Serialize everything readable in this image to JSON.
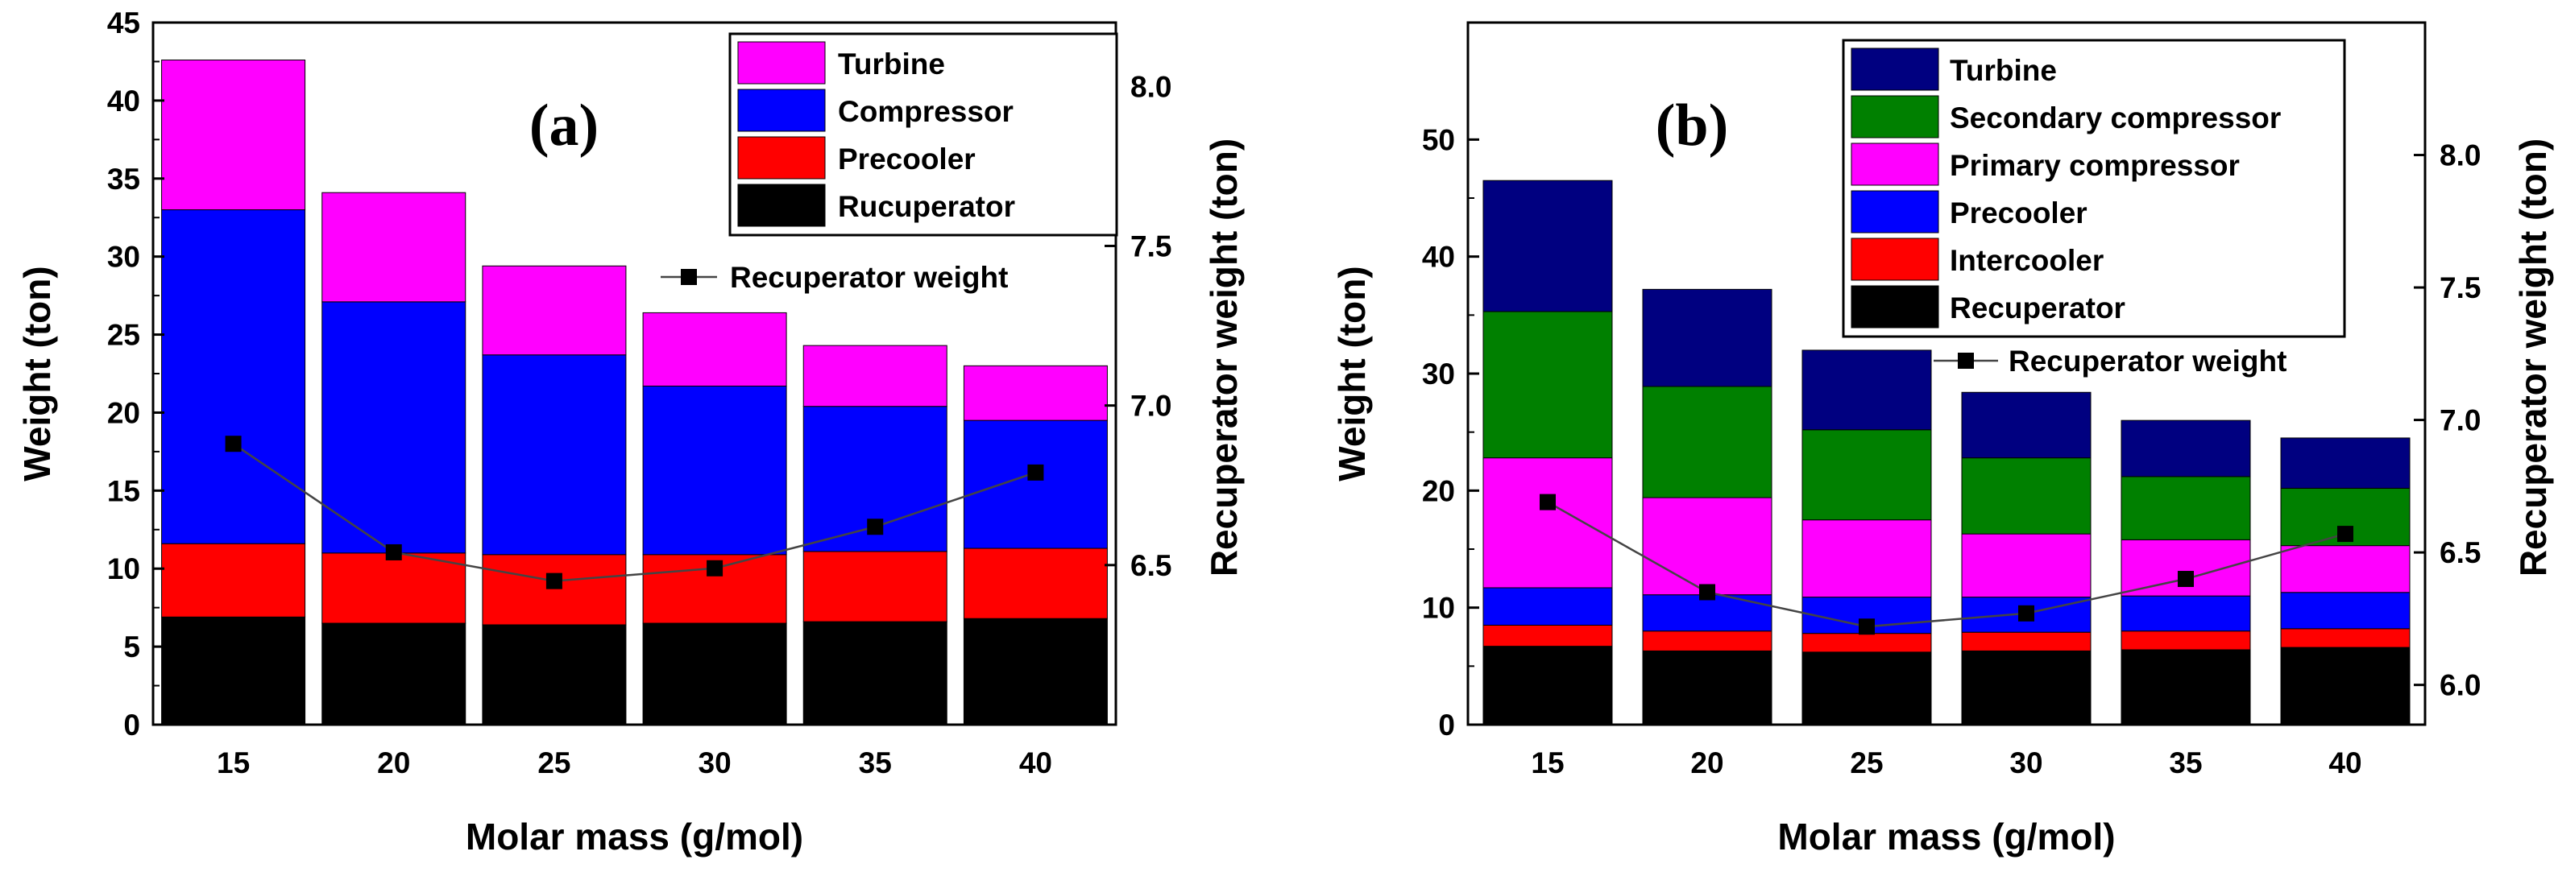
{
  "chart_data": [
    {
      "id": "a",
      "type": "stacked-bar",
      "panel_label": "(a)",
      "categories": [
        "15",
        "20",
        "25",
        "30",
        "35",
        "40"
      ],
      "xlabel": "Molar mass (g/mol)",
      "ylabel": "Weight (ton)",
      "ylim": [
        0,
        45
      ],
      "yticks": [
        "0",
        "5",
        "10",
        "15",
        "20",
        "25",
        "30",
        "35",
        "40",
        "45"
      ],
      "y2label": "Recuperator weight (ton)",
      "y2lim": [
        6.0,
        8.2
      ],
      "y2ticks": [
        "6.5",
        "7.0",
        "7.5",
        "8.0"
      ],
      "legend_position": "top-right",
      "series": [
        {
          "name": "Rucuperator",
          "color": "#000000",
          "values": [
            6.9,
            6.5,
            6.4,
            6.5,
            6.6,
            6.8
          ]
        },
        {
          "name": "Precooler",
          "color": "#ff0000",
          "values": [
            4.7,
            4.5,
            4.5,
            4.4,
            4.5,
            4.5
          ]
        },
        {
          "name": "Compressor",
          "color": "#0000ff",
          "values": [
            21.4,
            16.1,
            12.8,
            10.8,
            9.3,
            8.2
          ]
        },
        {
          "name": "Turbine",
          "color": "#ff00ff",
          "values": [
            9.6,
            7.0,
            5.7,
            4.7,
            3.9,
            3.5
          ]
        }
      ],
      "line_series": {
        "name": "Recuperator weight",
        "color": "#000000",
        "axis": "right",
        "values": [
          6.88,
          6.54,
          6.45,
          6.49,
          6.62,
          6.79
        ]
      }
    },
    {
      "id": "b",
      "type": "stacked-bar",
      "panel_label": "(b)",
      "categories": [
        "15",
        "20",
        "25",
        "30",
        "35",
        "40"
      ],
      "xlabel": "Molar mass (g/mol)",
      "ylabel": "Weight (ton)",
      "ylim": [
        0,
        60
      ],
      "yticks": [
        "0",
        "10",
        "20",
        "30",
        "40",
        "50"
      ],
      "y2label": "Recuperator weight (ton)",
      "y2lim": [
        5.85,
        8.5
      ],
      "y2ticks": [
        "6.0",
        "6.5",
        "7.0",
        "7.5",
        "8.0"
      ],
      "legend_position": "top-right",
      "series": [
        {
          "name": "Recuperator",
          "color": "#000000",
          "values": [
            6.7,
            6.3,
            6.2,
            6.3,
            6.4,
            6.6
          ]
        },
        {
          "name": "Intercooler",
          "color": "#ff0000",
          "values": [
            1.8,
            1.7,
            1.6,
            1.6,
            1.6,
            1.6
          ]
        },
        {
          "name": "Precooler",
          "color": "#0000ff",
          "values": [
            3.2,
            3.1,
            3.1,
            3.0,
            3.0,
            3.1
          ]
        },
        {
          "name": "Primary compressor",
          "color": "#ff00ff",
          "values": [
            11.1,
            8.3,
            6.6,
            5.4,
            4.8,
            4.0
          ]
        },
        {
          "name": "Secondary compressor",
          "color": "#008000",
          "values": [
            12.5,
            9.5,
            7.7,
            6.5,
            5.4,
            4.9
          ]
        },
        {
          "name": "Turbine",
          "color": "#000080",
          "values": [
            11.2,
            8.3,
            6.8,
            5.6,
            4.8,
            4.3
          ]
        }
      ],
      "line_series": {
        "name": "Recuperator weight",
        "color": "#000000",
        "axis": "right",
        "values": [
          6.69,
          6.35,
          6.22,
          6.27,
          6.4,
          6.57
        ]
      }
    }
  ]
}
